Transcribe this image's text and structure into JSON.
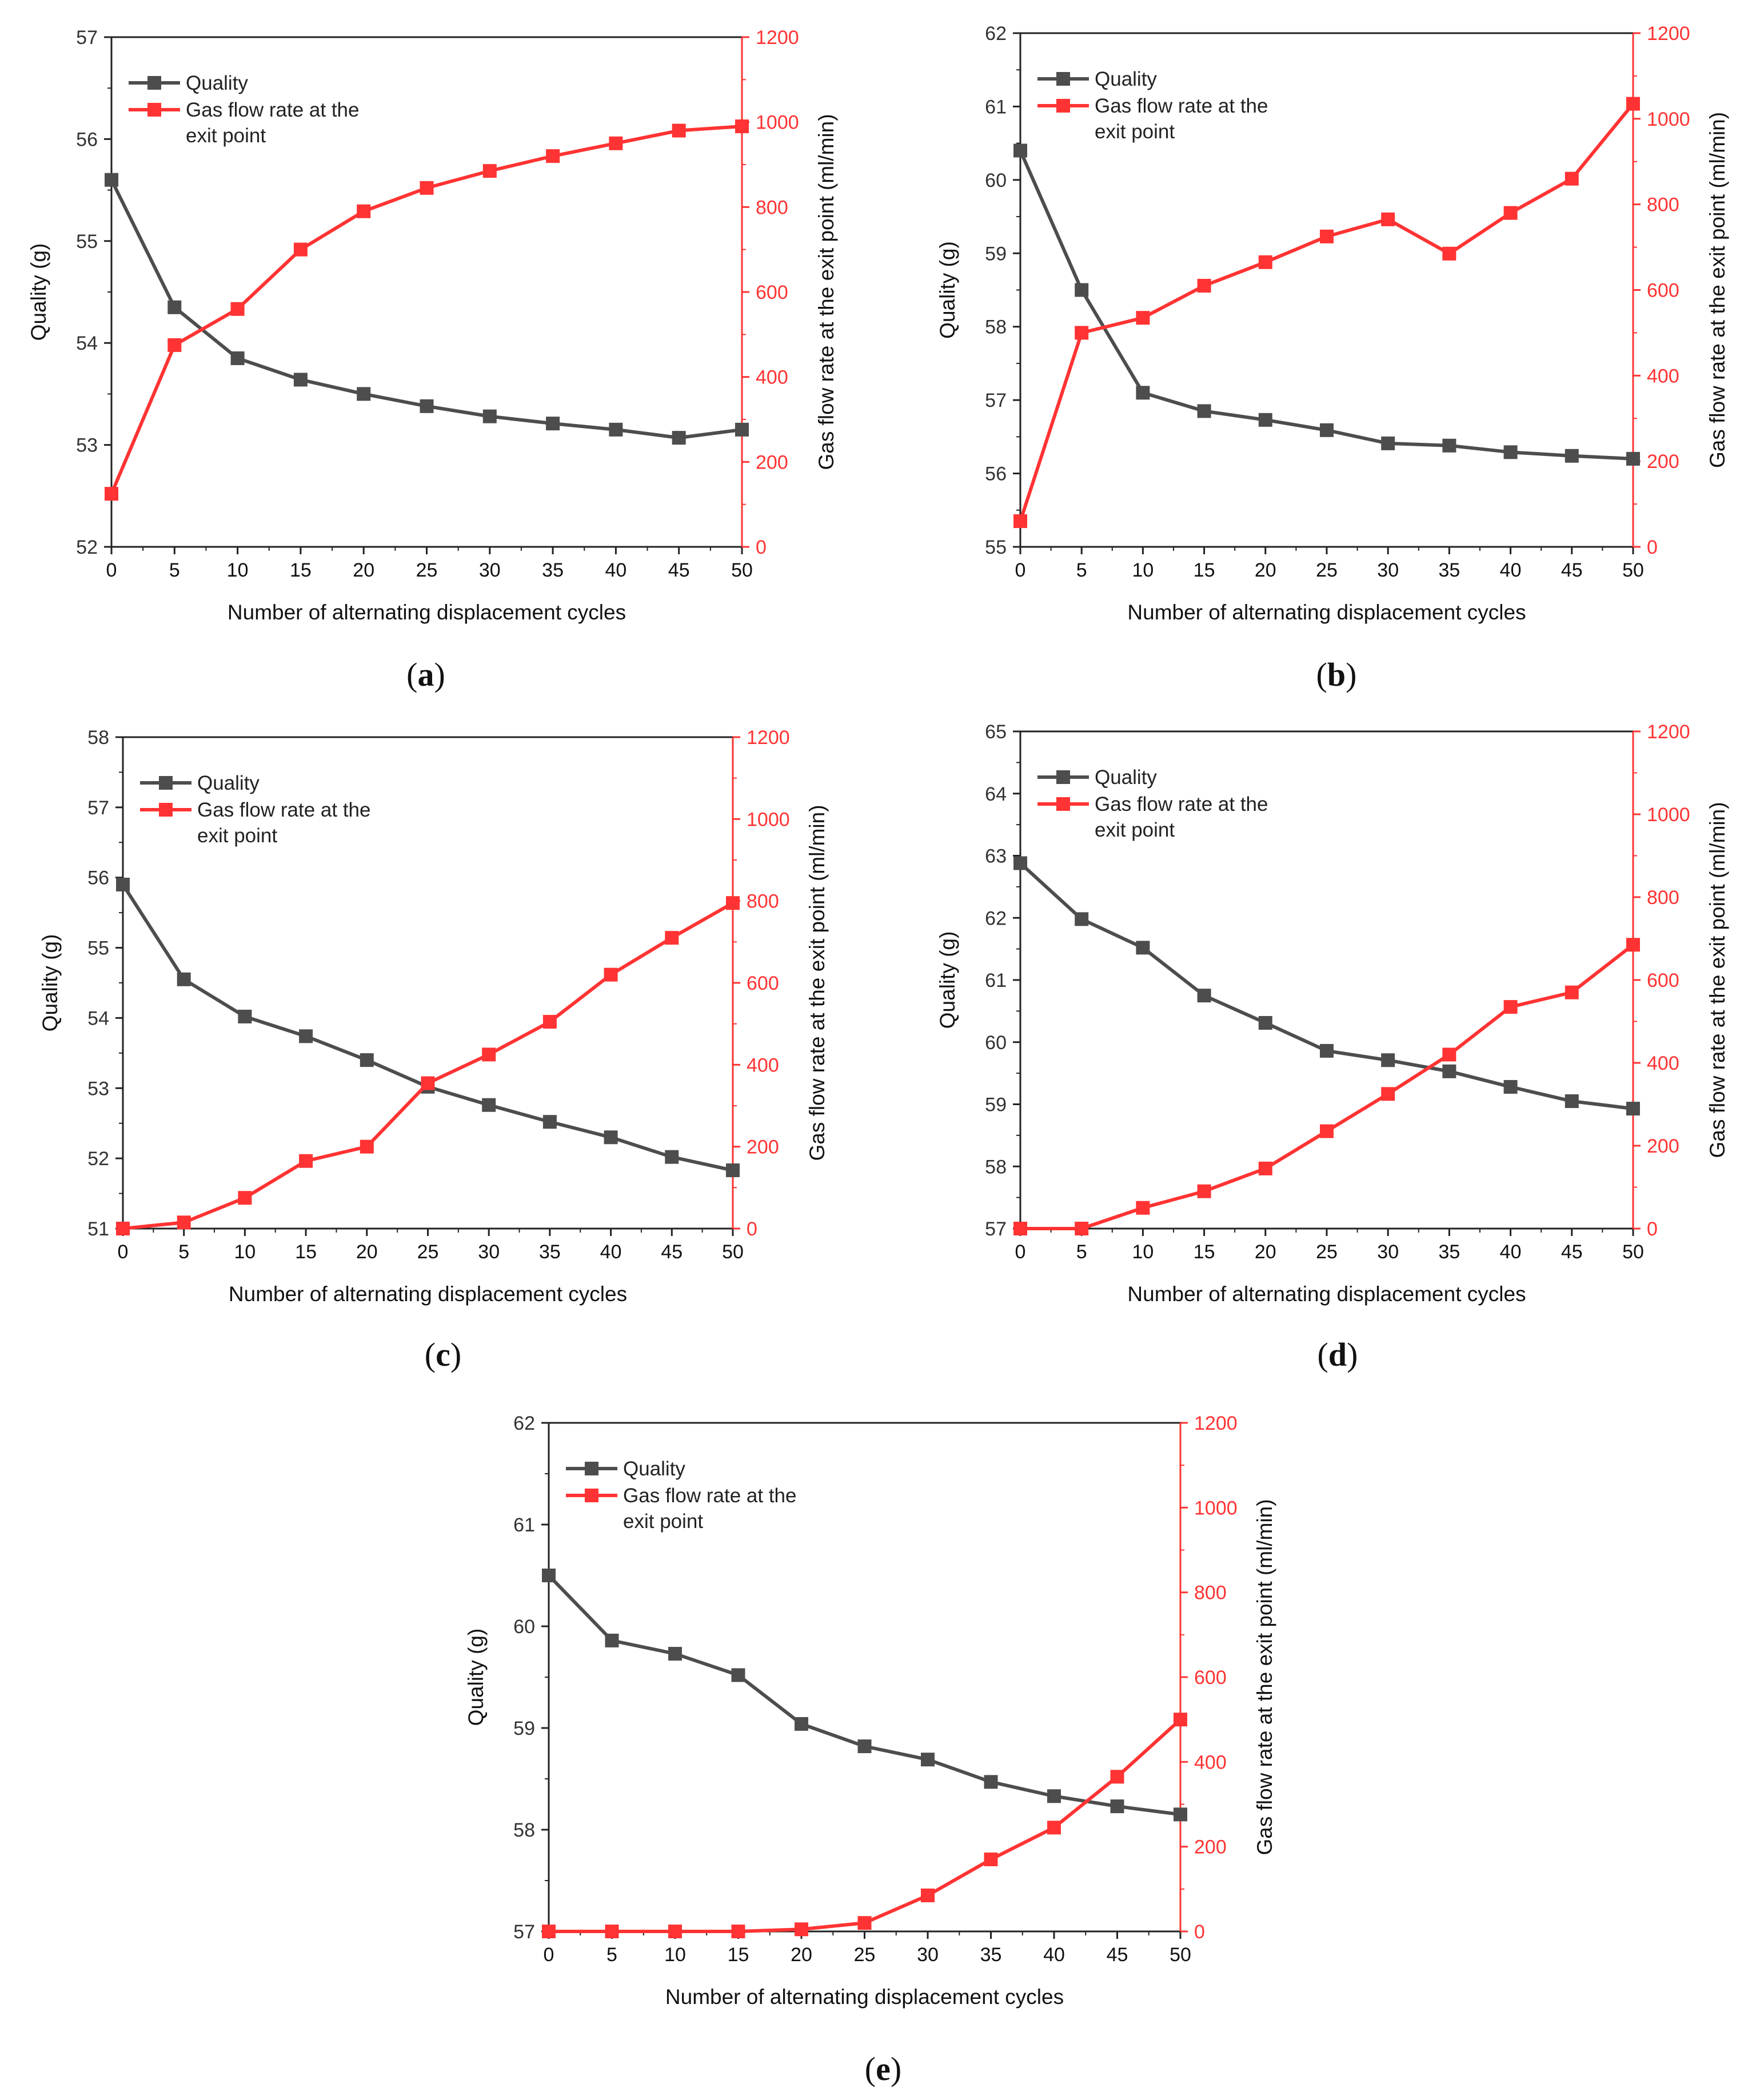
{
  "colors": {
    "quality": "#4d4d4d",
    "gas": "#ff3333",
    "axis": "#222222",
    "tick_text": "#333333"
  },
  "legend": {
    "quality_label": "Quality",
    "gas_label_line1": "Gas flow rate at the",
    "gas_label_line2": "exit point"
  },
  "panel_labels": [
    {
      "open": "(",
      "letter": "a",
      "close": ")"
    },
    {
      "open": "(",
      "letter": "b",
      "close": ")"
    },
    {
      "open": "(",
      "letter": "c",
      "close": ")"
    },
    {
      "open": "(",
      "letter": "d",
      "close": ")"
    },
    {
      "open": "(",
      "letter": "e",
      "close": ")"
    }
  ],
  "chart_data": [
    {
      "type": "line",
      "panel": "a",
      "title": "",
      "xlabel": "Number of alternating displacement cycles",
      "ylabel": "Quality (g)",
      "y2label": "Gas flow rate at the exit point (ml/min)",
      "x": [
        0,
        5,
        10,
        15,
        20,
        25,
        30,
        35,
        40,
        45,
        50
      ],
      "xlim": [
        0,
        50
      ],
      "ylim": [
        52,
        57
      ],
      "y2lim": [
        0,
        1200
      ],
      "xticks": [
        "0",
        "5",
        "10",
        "15",
        "20",
        "25",
        "30",
        "35",
        "40",
        "45",
        "50"
      ],
      "yticks": [
        "52",
        "53",
        "54",
        "55",
        "56",
        "57"
      ],
      "y2ticks": [
        "0",
        "200",
        "400",
        "600",
        "800",
        "1000",
        "1200"
      ],
      "series": [
        {
          "name": "Quality",
          "axis": "left",
          "values": [
            55.6,
            54.35,
            53.85,
            53.64,
            53.5,
            53.38,
            53.28,
            53.21,
            53.15,
            53.07,
            53.15
          ]
        },
        {
          "name": "Gas flow rate at the exit point",
          "axis": "right",
          "values": [
            125,
            475,
            560,
            700,
            790,
            845,
            885,
            920,
            950,
            980,
            990
          ]
        }
      ]
    },
    {
      "type": "line",
      "panel": "b",
      "title": "",
      "xlabel": "Number of alternating displacement cycles",
      "ylabel": "Quality (g)",
      "y2label": "Gas flow rate at the exit point (ml/min)",
      "x": [
        0,
        5,
        10,
        15,
        20,
        25,
        30,
        35,
        40,
        45,
        50
      ],
      "xlim": [
        0,
        50
      ],
      "ylim": [
        55,
        62
      ],
      "y2lim": [
        0,
        1200
      ],
      "xticks": [
        "0",
        "5",
        "10",
        "15",
        "20",
        "25",
        "30",
        "35",
        "40",
        "45",
        "50"
      ],
      "yticks": [
        "55",
        "56",
        "57",
        "58",
        "59",
        "60",
        "61",
        "62"
      ],
      "y2ticks": [
        "0",
        "200",
        "400",
        "600",
        "800",
        "1000",
        "1200"
      ],
      "series": [
        {
          "name": "Quality",
          "axis": "left",
          "values": [
            60.4,
            58.5,
            57.1,
            56.85,
            56.73,
            56.59,
            56.41,
            56.38,
            56.29,
            56.24,
            56.2
          ]
        },
        {
          "name": "Gas flow rate at the exit point",
          "axis": "right",
          "values": [
            60,
            500,
            535,
            610,
            665,
            725,
            765,
            685,
            780,
            860,
            1035
          ]
        }
      ]
    },
    {
      "type": "line",
      "panel": "c",
      "title": "",
      "xlabel": "Number of alternating displacement cycles",
      "ylabel": "Quality (g)",
      "y2label": "Gas flow rate at the exit point (ml/min)",
      "x": [
        0,
        5,
        10,
        15,
        20,
        25,
        30,
        35,
        40,
        45,
        50
      ],
      "xlim": [
        0,
        50
      ],
      "ylim": [
        51,
        58
      ],
      "y2lim": [
        0,
        1200
      ],
      "xticks": [
        "0",
        "5",
        "10",
        "15",
        "20",
        "25",
        "30",
        "35",
        "40",
        "45",
        "50"
      ],
      "yticks": [
        "51",
        "52",
        "53",
        "54",
        "55",
        "56",
        "57",
        "58"
      ],
      "y2ticks": [
        "0",
        "200",
        "400",
        "600",
        "800",
        "1000",
        "1200"
      ],
      "series": [
        {
          "name": "Quality",
          "axis": "left",
          "values": [
            55.9,
            54.55,
            54.02,
            53.74,
            53.4,
            53.02,
            52.76,
            52.52,
            52.3,
            52.02,
            51.83
          ]
        },
        {
          "name": "Gas flow rate at the exit point",
          "axis": "right",
          "values": [
            0,
            15,
            75,
            165,
            200,
            355,
            425,
            505,
            620,
            710,
            795
          ]
        }
      ]
    },
    {
      "type": "line",
      "panel": "d",
      "title": "",
      "xlabel": "Number of alternating displacement cycles",
      "ylabel": "Quality (g)",
      "y2label": "Gas flow rate at the exit point (ml/min)",
      "x": [
        0,
        5,
        10,
        15,
        20,
        25,
        30,
        35,
        40,
        45,
        50
      ],
      "xlim": [
        0,
        50
      ],
      "ylim": [
        57,
        65
      ],
      "y2lim": [
        0,
        1200
      ],
      "xticks": [
        "0",
        "5",
        "10",
        "15",
        "20",
        "25",
        "30",
        "35",
        "40",
        "45",
        "50"
      ],
      "yticks": [
        "57",
        "58",
        "59",
        "60",
        "61",
        "62",
        "63",
        "64",
        "65"
      ],
      "y2ticks": [
        "0",
        "200",
        "400",
        "600",
        "800",
        "1000",
        "1200"
      ],
      "series": [
        {
          "name": "Quality",
          "axis": "left",
          "values": [
            62.88,
            61.98,
            61.52,
            60.75,
            60.31,
            59.86,
            59.71,
            59.53,
            59.28,
            59.05,
            58.93
          ]
        },
        {
          "name": "Gas flow rate at the exit point",
          "axis": "right",
          "values": [
            0,
            0,
            50,
            90,
            145,
            235,
            325,
            420,
            535,
            570,
            685
          ]
        }
      ]
    },
    {
      "type": "line",
      "panel": "e",
      "title": "",
      "xlabel": "Number of alternating displacement cycles",
      "ylabel": "Quality (g)",
      "y2label": "Gas flow rate at the exit point (ml/min)",
      "x": [
        0,
        5,
        10,
        15,
        20,
        25,
        30,
        35,
        40,
        45,
        50
      ],
      "xlim": [
        0,
        50
      ],
      "ylim": [
        57,
        62
      ],
      "y2lim": [
        0,
        1200
      ],
      "xticks": [
        "0",
        "5",
        "10",
        "15",
        "20",
        "25",
        "30",
        "35",
        "40",
        "45",
        "50"
      ],
      "yticks": [
        "57",
        "58",
        "59",
        "60",
        "61",
        "62"
      ],
      "y2ticks": [
        "0",
        "200",
        "400",
        "600",
        "800",
        "1000",
        "1200"
      ],
      "series": [
        {
          "name": "Quality",
          "axis": "left",
          "values": [
            60.5,
            59.86,
            59.73,
            59.52,
            59.04,
            58.82,
            58.69,
            58.47,
            58.33,
            58.23,
            58.15
          ]
        },
        {
          "name": "Gas flow rate at the exit point",
          "axis": "right",
          "values": [
            0,
            0,
            0,
            0,
            5,
            20,
            85,
            170,
            245,
            365,
            500
          ]
        }
      ]
    }
  ]
}
